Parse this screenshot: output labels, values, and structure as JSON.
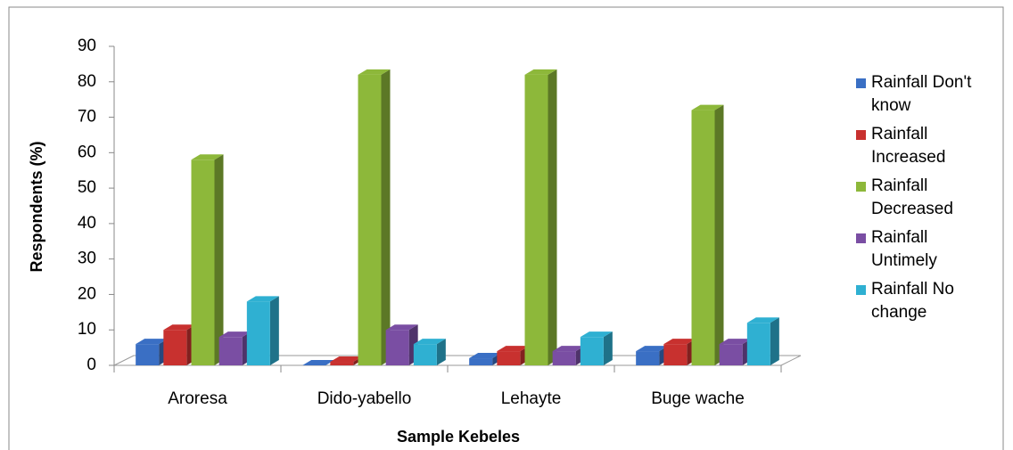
{
  "chart_data": {
    "type": "bar3d",
    "x_label": "Sample Kebeles",
    "y_label": "Respondents (%)",
    "categories": [
      "Aroresa",
      "Dido-yabello",
      "Lehayte",
      "Buge wache"
    ],
    "series": [
      {
        "name": "Rainfall Don't know",
        "color": "#3a6fc4",
        "values": [
          6,
          0,
          2,
          4
        ]
      },
      {
        "name": "Rainfall Increased",
        "color": "#c8312f",
        "values": [
          10,
          1,
          4,
          6
        ]
      },
      {
        "name": "Rainfall Decreased",
        "color": "#8db83a",
        "values": [
          58,
          82,
          82,
          72
        ]
      },
      {
        "name": "Rainfall Untimely",
        "color": "#7a4ea3",
        "values": [
          8,
          10,
          4,
          6
        ]
      },
      {
        "name": "Rainfall No change",
        "color": "#2fb0d2",
        "values": [
          18,
          6,
          8,
          12
        ]
      }
    ],
    "ylim": [
      0,
      90
    ],
    "yticks": [
      0,
      10,
      20,
      30,
      40,
      50,
      60,
      70,
      80,
      90
    ],
    "legend": "right"
  }
}
